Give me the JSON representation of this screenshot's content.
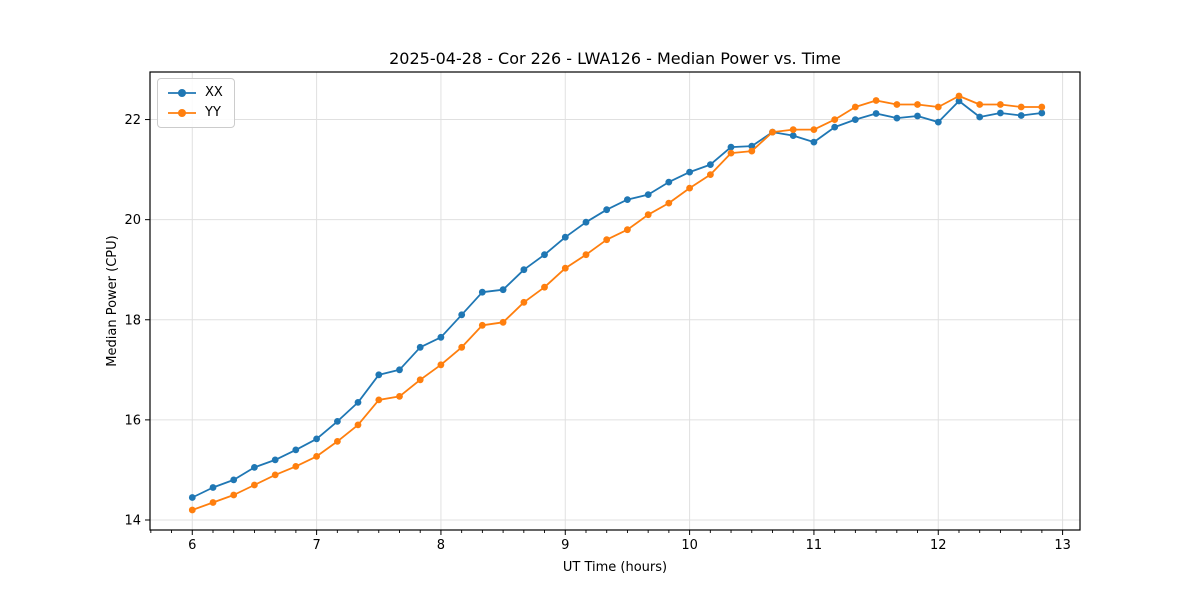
{
  "figure": {
    "background": "#ffffff"
  },
  "colors": {
    "grid": "#e0e0e0",
    "spine": "#000000",
    "text": "#000000",
    "legend_border": "#cccccc",
    "series_xx": "#1f77b4",
    "series_yy": "#ff7f0e"
  },
  "legend": {
    "items": [
      "XX",
      "YY"
    ]
  },
  "chart_data": {
    "type": "line",
    "title": "2025-04-28 - Cor 226 - LWA126 - Median Power vs. Time",
    "xlabel": "UT Time (hours)",
    "ylabel": "Median Power (CPU)",
    "xlim": [
      5.66,
      13.14
    ],
    "ylim": [
      13.8,
      22.95
    ],
    "x_ticks": [
      6,
      7,
      8,
      9,
      10,
      11,
      12,
      13
    ],
    "x_tick_labels": [
      "6",
      "7",
      "8",
      "9",
      "10",
      "11",
      "12",
      "13"
    ],
    "y_ticks": [
      14,
      16,
      18,
      20,
      22
    ],
    "y_tick_labels": [
      "14",
      "16",
      "18",
      "20",
      "22"
    ],
    "x_minor_tick_interval": 0.16667,
    "grid": true,
    "legend_position": "upper-left",
    "marker": "circle",
    "x": [
      6.0,
      6.167,
      6.333,
      6.5,
      6.667,
      6.833,
      7.0,
      7.167,
      7.333,
      7.5,
      7.667,
      7.833,
      8.0,
      8.167,
      8.333,
      8.5,
      8.667,
      8.833,
      9.0,
      9.167,
      9.333,
      9.5,
      9.667,
      9.833,
      10.0,
      10.167,
      10.333,
      10.5,
      10.667,
      10.833,
      11.0,
      11.167,
      11.333,
      11.5,
      11.667,
      11.833,
      12.0,
      12.167,
      12.333,
      12.5,
      12.667,
      12.833
    ],
    "series": [
      {
        "name": "XX",
        "color": "#1f77b4",
        "values": [
          14.45,
          14.65,
          14.8,
          15.05,
          15.2,
          15.4,
          15.62,
          15.97,
          16.35,
          16.9,
          17.0,
          17.45,
          17.65,
          18.1,
          18.55,
          18.6,
          19.0,
          19.3,
          19.65,
          19.95,
          20.2,
          20.4,
          20.5,
          20.75,
          20.95,
          21.1,
          21.45,
          21.47,
          21.75,
          21.68,
          21.55,
          21.85,
          22.0,
          22.12,
          22.03,
          22.07,
          21.95,
          22.37,
          22.05,
          22.13,
          22.08,
          22.13
        ]
      },
      {
        "name": "YY",
        "color": "#ff7f0e",
        "values": [
          14.2,
          14.35,
          14.5,
          14.7,
          14.9,
          15.07,
          15.27,
          15.57,
          15.9,
          16.4,
          16.47,
          16.8,
          17.1,
          17.45,
          17.89,
          17.95,
          18.35,
          18.65,
          19.03,
          19.3,
          19.6,
          19.8,
          20.1,
          20.33,
          20.63,
          20.9,
          21.33,
          21.37,
          21.75,
          21.8,
          21.8,
          22.0,
          22.25,
          22.38,
          22.3,
          22.3,
          22.25,
          22.47,
          22.3,
          22.3,
          22.25,
          22.25
        ]
      }
    ]
  }
}
